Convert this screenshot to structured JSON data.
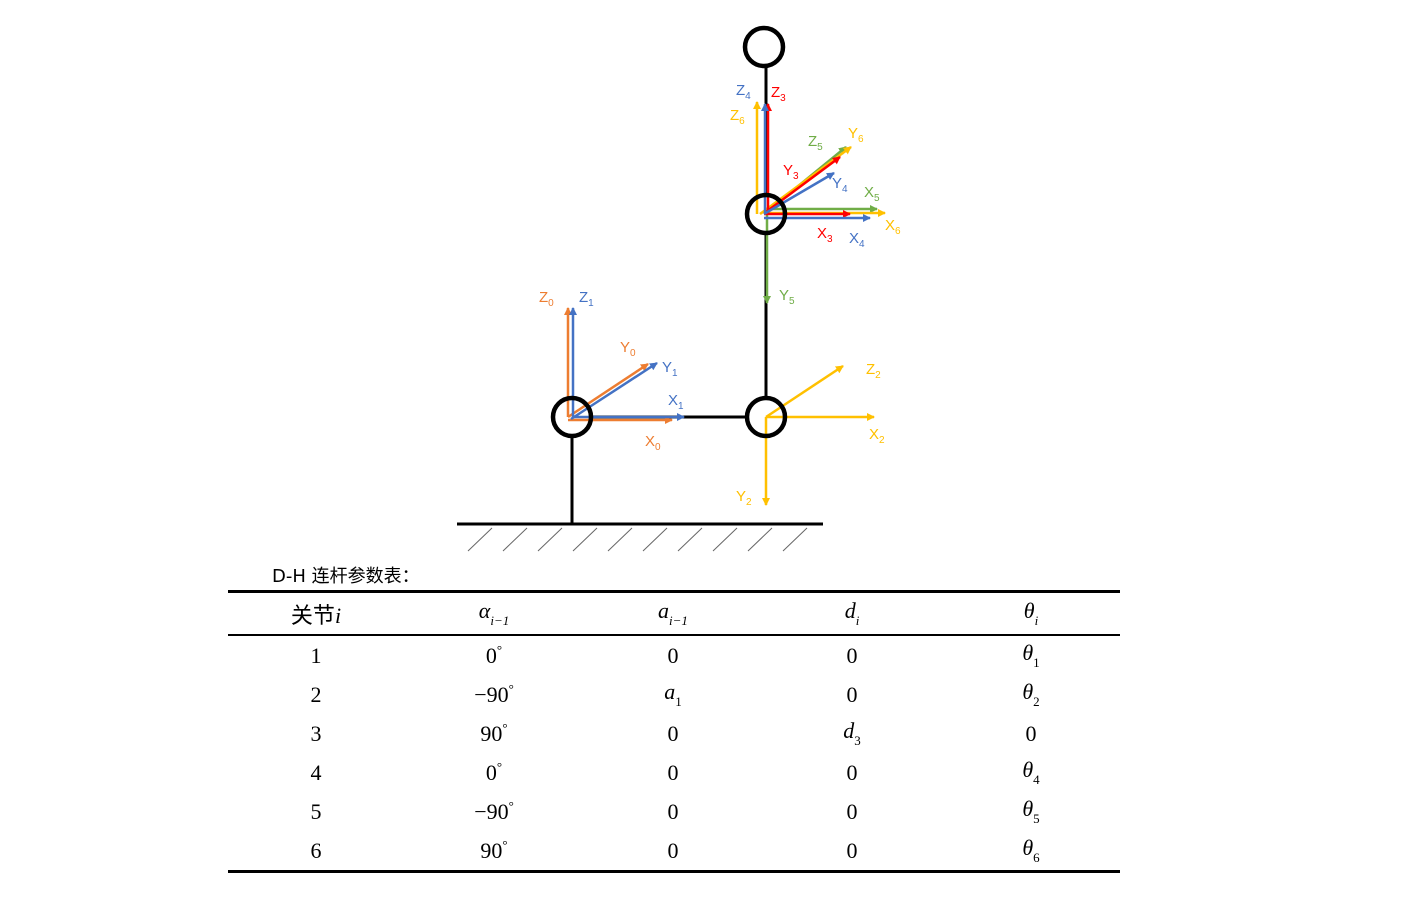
{
  "colors": {
    "frame0": "#ED7D31",
    "frame1": "#4472C4",
    "frame2": "#FFC000",
    "frame3": "#FF0000",
    "frame4": "#4472C4",
    "frame5": "#70AD47",
    "frame6": "#FFC000",
    "links": "#000000"
  },
  "axes": {
    "z0": {
      "base": "Z",
      "sub": "0"
    },
    "z1": {
      "base": "Z",
      "sub": "1"
    },
    "y0": {
      "base": "Y",
      "sub": "0"
    },
    "y1": {
      "base": "Y",
      "sub": "1"
    },
    "x1": {
      "base": "X",
      "sub": "1"
    },
    "x0": {
      "base": "X",
      "sub": "0"
    },
    "z2": {
      "base": "Z",
      "sub": "2"
    },
    "x2": {
      "base": "X",
      "sub": "2"
    },
    "y2": {
      "base": "Y",
      "sub": "2"
    },
    "y5": {
      "base": "Y",
      "sub": "5"
    },
    "z4": {
      "base": "Z",
      "sub": "4"
    },
    "z3": {
      "base": "Z",
      "sub": "3"
    },
    "z6": {
      "base": "Z",
      "sub": "6"
    },
    "z5": {
      "base": "Z",
      "sub": "5"
    },
    "y6": {
      "base": "Y",
      "sub": "6"
    },
    "y3": {
      "base": "Y",
      "sub": "3"
    },
    "y4": {
      "base": "Y",
      "sub": "4"
    },
    "x5": {
      "base": "X",
      "sub": "5"
    },
    "x6": {
      "base": "X",
      "sub": "6"
    },
    "x3": {
      "base": "X",
      "sub": "3"
    },
    "x4": {
      "base": "X",
      "sub": "4"
    }
  },
  "table": {
    "caption": "D-H 连杆参数表：",
    "headers": {
      "joint": "关节",
      "joint_var": "i",
      "alpha": "α",
      "alpha_sub": "i−1",
      "a": "a",
      "a_sub": "i−1",
      "d": "d",
      "d_sub": "i",
      "theta": "θ",
      "theta_sub": "i"
    },
    "rows": [
      {
        "joint": "1",
        "alpha": "0",
        "alpha_unit": "°",
        "a": "0",
        "a_sub": "",
        "d": "0",
        "d_sub": "",
        "theta": "θ",
        "theta_sub": "1"
      },
      {
        "joint": "2",
        "alpha": "−90",
        "alpha_unit": "°",
        "a": "a",
        "a_sub": "1",
        "d": "0",
        "d_sub": "",
        "theta": "θ",
        "theta_sub": "2"
      },
      {
        "joint": "3",
        "alpha": "90",
        "alpha_unit": "°",
        "a": "0",
        "a_sub": "",
        "d": "d",
        "d_sub": "3",
        "theta": "0",
        "theta_sub": ""
      },
      {
        "joint": "4",
        "alpha": "0",
        "alpha_unit": "°",
        "a": "0",
        "a_sub": "",
        "d": "0",
        "d_sub": "",
        "theta": "θ",
        "theta_sub": "4"
      },
      {
        "joint": "5",
        "alpha": "−90",
        "alpha_unit": "°",
        "a": "0",
        "a_sub": "",
        "d": "0",
        "d_sub": "",
        "theta": "θ",
        "theta_sub": "5"
      },
      {
        "joint": "6",
        "alpha": "90",
        "alpha_unit": "°",
        "a": "0",
        "a_sub": "",
        "d": "0",
        "d_sub": "",
        "theta": "θ",
        "theta_sub": "6"
      }
    ]
  }
}
